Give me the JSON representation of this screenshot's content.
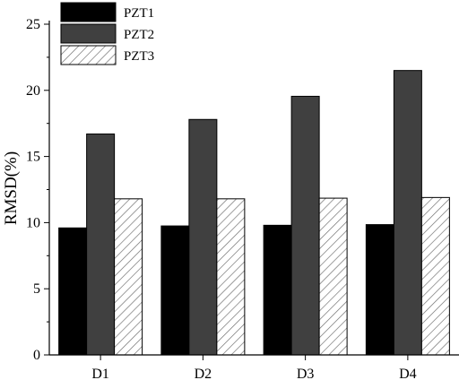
{
  "chart_data": {
    "type": "bar",
    "title": "",
    "xlabel": "",
    "ylabel": "RMSD(%)",
    "categories": [
      "D1",
      "D2",
      "D3",
      "D4"
    ],
    "ylim": [
      0,
      25
    ],
    "yticks": [
      0,
      5,
      10,
      15,
      20,
      25
    ],
    "grid": false,
    "legend_position": "top-left",
    "series": [
      {
        "name": "PZT1",
        "values": [
          9.6,
          9.75,
          9.8,
          9.85
        ],
        "color": "#000000",
        "pattern": "solid"
      },
      {
        "name": "PZT2",
        "values": [
          16.7,
          17.8,
          19.55,
          21.5
        ],
        "color": "#404040",
        "pattern": "solid"
      },
      {
        "name": "PZT3",
        "values": [
          11.8,
          11.8,
          11.85,
          11.9
        ],
        "color": "#ffffff",
        "pattern": "diagonal-hatch"
      }
    ]
  }
}
